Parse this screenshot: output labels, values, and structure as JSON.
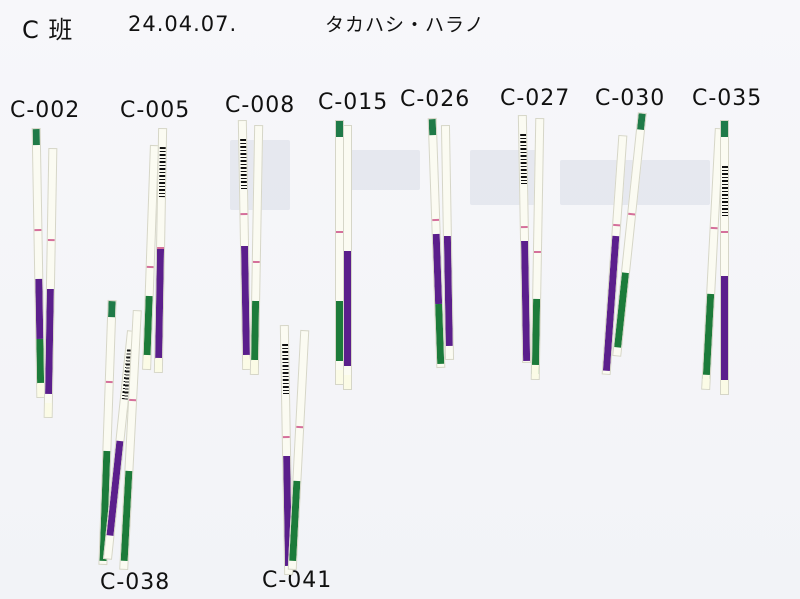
{
  "header": {
    "title": "C 班",
    "date": "24.04.07.",
    "name": "タカハシ・ハラノ"
  },
  "samples": [
    "C-002",
    "C-005",
    "C-008",
    "C-015",
    "C-026",
    "C-027",
    "C-030",
    "C-035",
    "C-038",
    "C-041"
  ]
}
